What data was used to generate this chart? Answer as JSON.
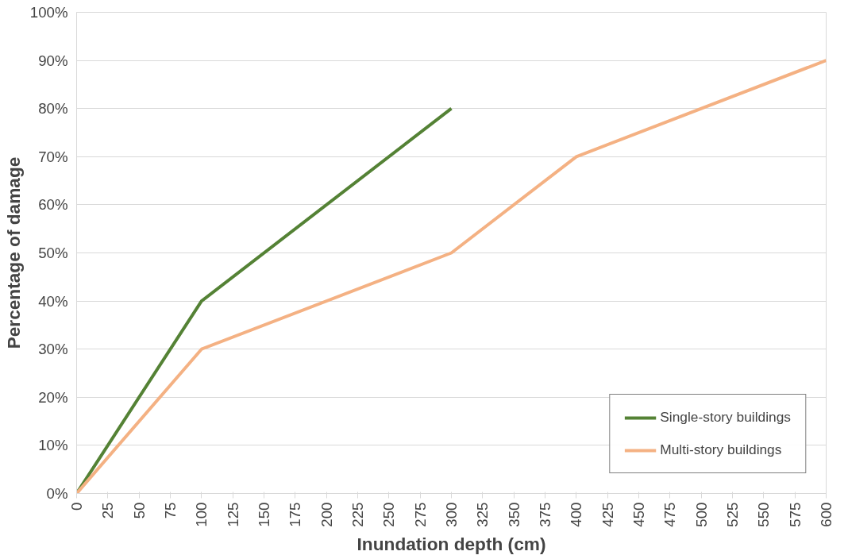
{
  "chart_data": {
    "type": "line",
    "xlabel": "Inundation depth (cm)",
    "ylabel": "Percentage of damage",
    "xlim": [
      0,
      600
    ],
    "xticks": [
      0,
      25,
      50,
      75,
      100,
      125,
      150,
      175,
      200,
      225,
      250,
      275,
      300,
      325,
      350,
      375,
      400,
      425,
      450,
      475,
      500,
      525,
      550,
      575,
      600
    ],
    "ylim": [
      0,
      100
    ],
    "yticks": [
      {
        "value": 0,
        "label": "0%"
      },
      {
        "value": 10,
        "label": "10%"
      },
      {
        "value": 20,
        "label": "20%"
      },
      {
        "value": 30,
        "label": "30%"
      },
      {
        "value": 40,
        "label": "40%"
      },
      {
        "value": 50,
        "label": "50%"
      },
      {
        "value": 60,
        "label": "60%"
      },
      {
        "value": 70,
        "label": "70%"
      },
      {
        "value": 80,
        "label": "80%"
      },
      {
        "value": 90,
        "label": "90%"
      },
      {
        "value": 100,
        "label": "100%"
      }
    ],
    "grid": "y",
    "legend": "bottom right",
    "line_style": "solid",
    "series": [
      {
        "name": "Single-story buildings",
        "color": "#548235",
        "x": [
          0,
          100,
          300
        ],
        "values": [
          0,
          40,
          80
        ]
      },
      {
        "name": "Multi-story buildings",
        "color": "#f4b183",
        "x": [
          0,
          100,
          300,
          400,
          600
        ],
        "values": [
          0,
          30,
          50,
          70,
          90
        ]
      }
    ]
  }
}
